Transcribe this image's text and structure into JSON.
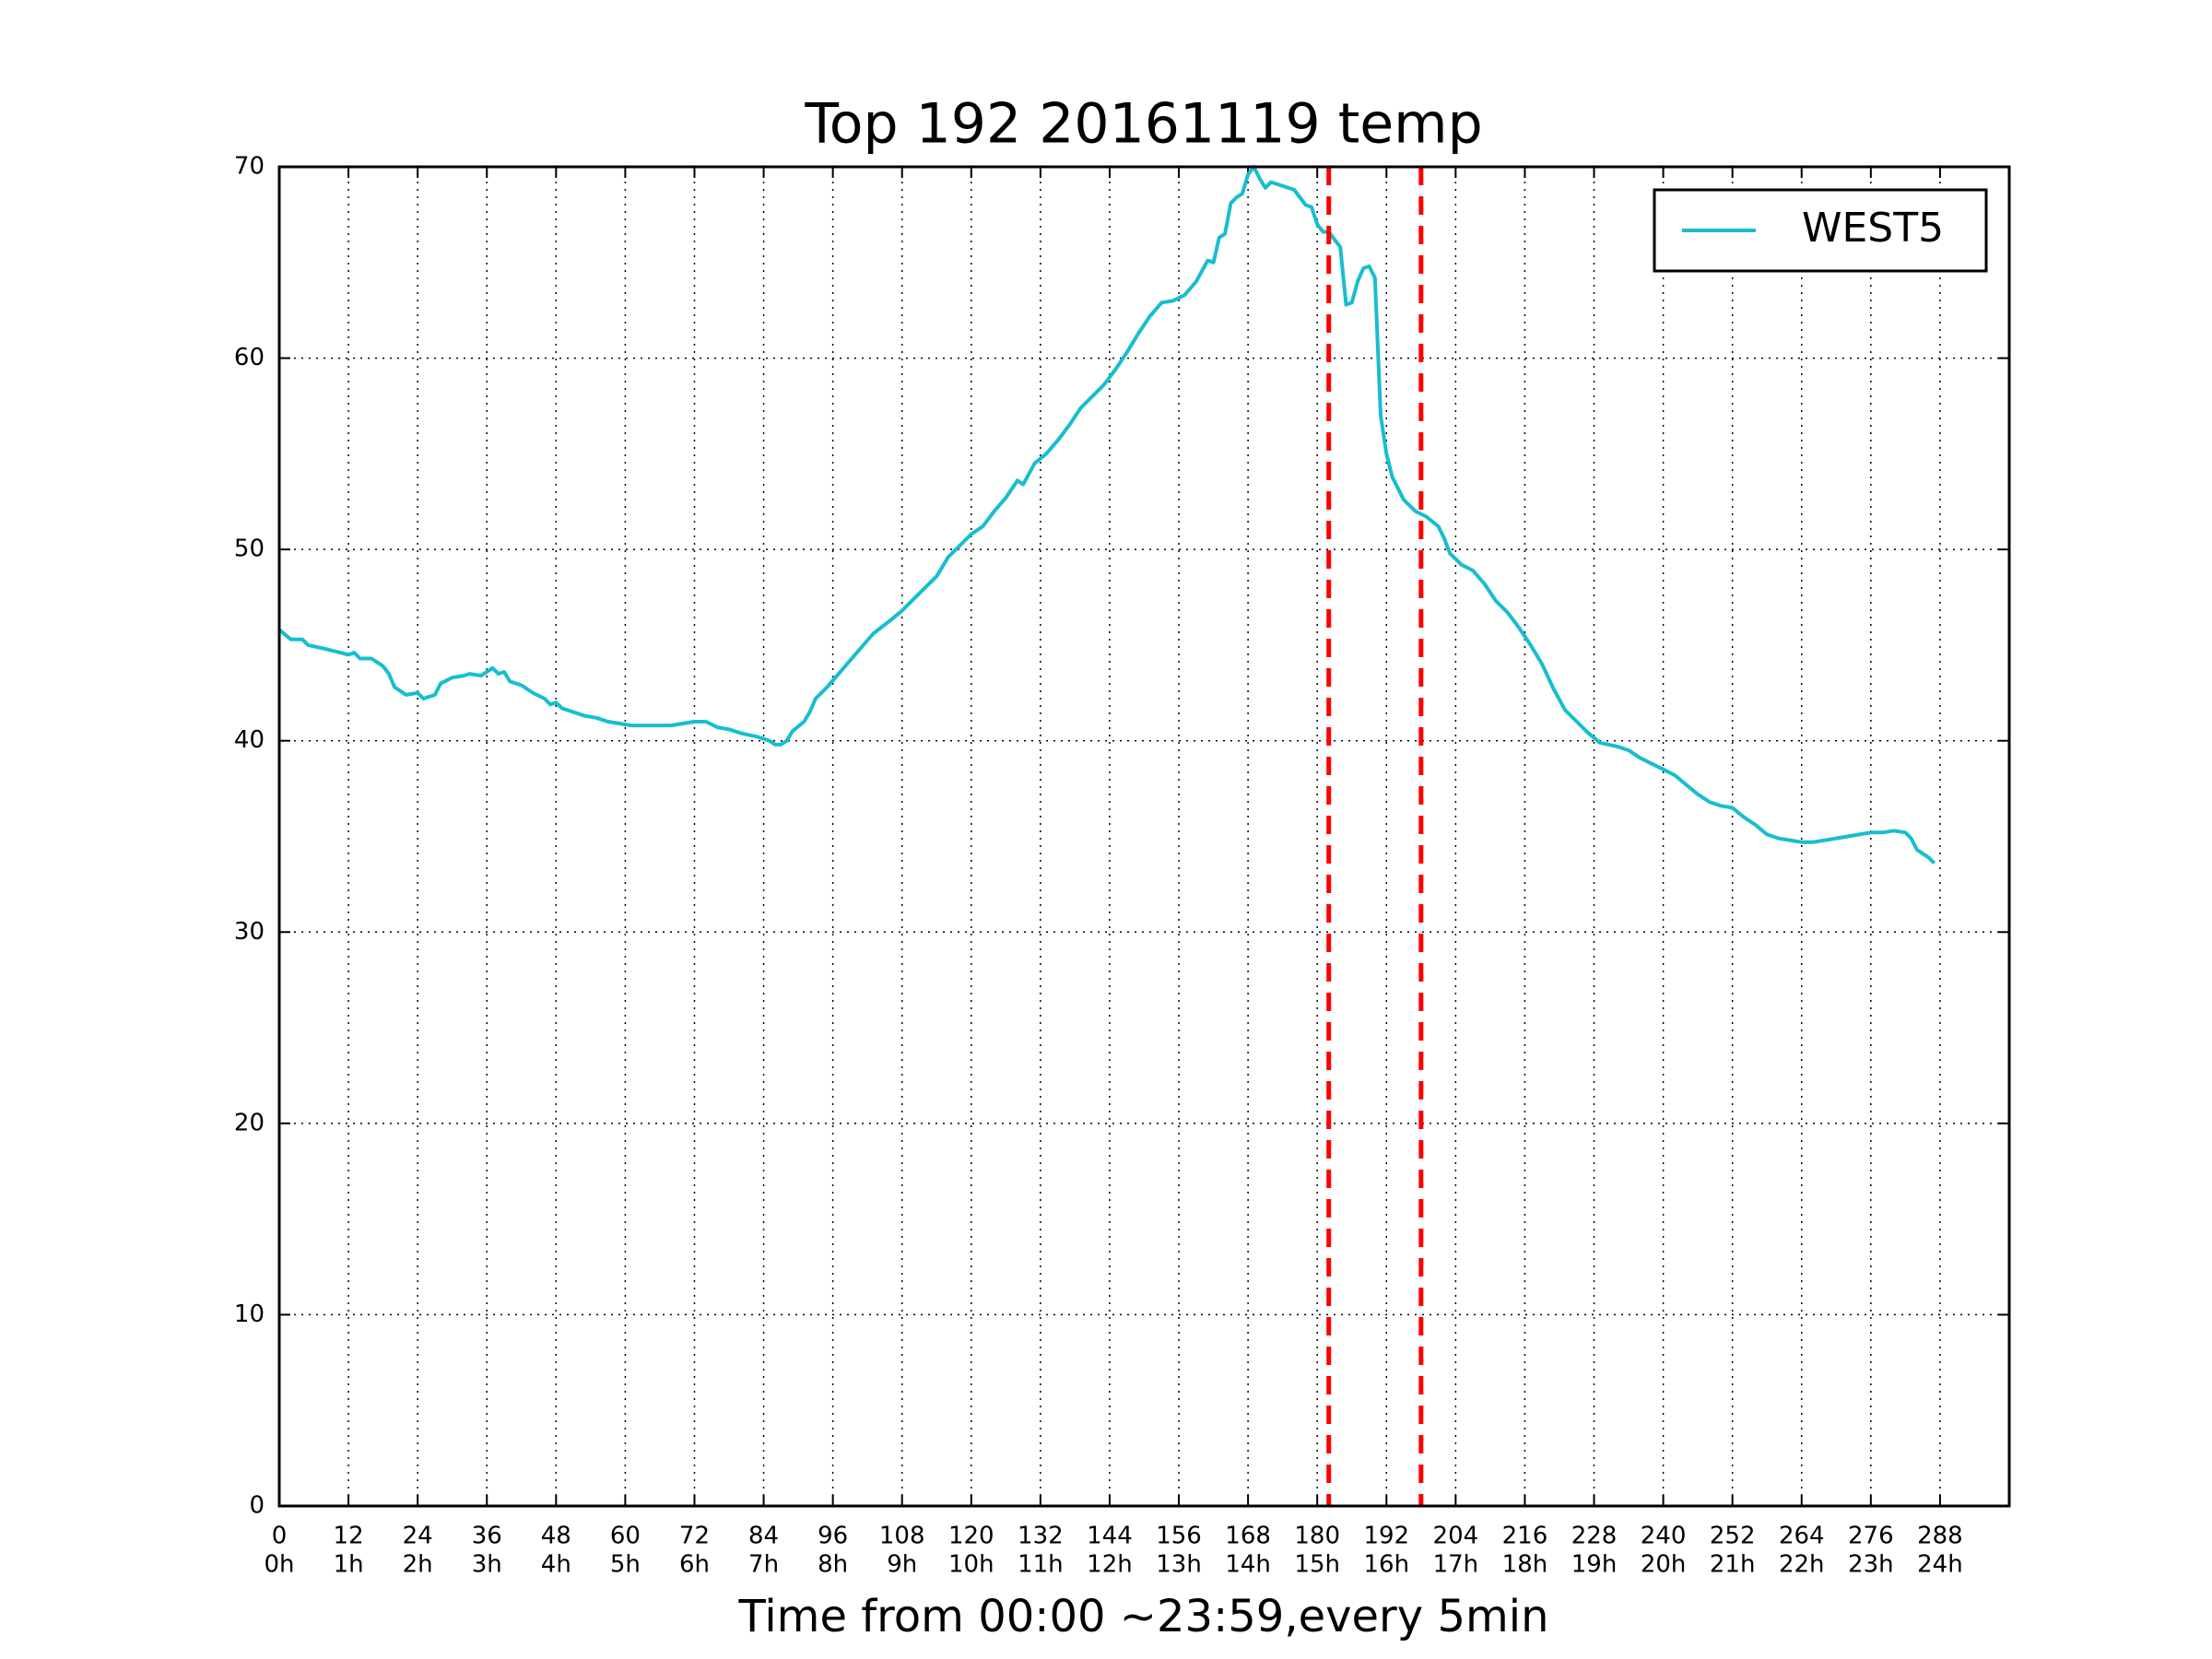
{
  "chart_data": {
    "type": "line",
    "title": "Top 192 20161119 temp",
    "x_label": "Time from 00:00 ~23:59,every 5min",
    "xlim": [
      0,
      300
    ],
    "ylim": [
      0,
      70
    ],
    "xticks": [
      0,
      12,
      24,
      36,
      48,
      60,
      72,
      84,
      96,
      108,
      120,
      132,
      144,
      156,
      168,
      180,
      192,
      204,
      216,
      228,
      240,
      252,
      264,
      276,
      288
    ],
    "xtick_hours": [
      "0h",
      "1h",
      "2h",
      "3h",
      "4h",
      "5h",
      "6h",
      "7h",
      "8h",
      "9h",
      "10h",
      "11h",
      "12h",
      "13h",
      "14h",
      "15h",
      "16h",
      "17h",
      "18h",
      "19h",
      "20h",
      "21h",
      "22h",
      "23h",
      "24h"
    ],
    "yticks": [
      0,
      10,
      20,
      30,
      40,
      50,
      60,
      70
    ],
    "grid": true,
    "legend": "upper right",
    "vlines": [
      {
        "x": 182,
        "color": "#ff0000"
      },
      {
        "x": 198,
        "color": "#ff0000"
      }
    ],
    "series": [
      {
        "name": "WEST5",
        "color": "#17becf",
        "x": [
          0,
          2,
          4,
          5,
          8,
          12,
          13,
          14,
          16,
          18,
          19,
          20,
          22,
          24,
          25,
          27,
          28,
          30,
          32,
          33,
          35,
          36,
          37,
          38,
          39,
          40,
          42,
          44,
          46,
          47,
          48,
          49,
          51,
          53,
          55,
          57,
          59,
          61,
          63,
          65,
          68,
          70,
          72,
          74,
          76,
          78,
          80,
          83,
          85,
          86,
          87,
          88,
          89,
          91,
          92,
          93,
          95,
          97,
          99,
          101,
          103,
          106,
          108,
          110,
          112,
          114,
          116,
          118,
          120,
          122,
          124,
          126,
          128,
          129,
          131,
          133,
          135,
          137,
          139,
          141,
          143,
          145,
          147,
          149,
          151,
          153,
          155,
          157,
          159,
          161,
          162,
          163,
          164,
          165,
          166,
          167,
          168,
          169,
          170,
          171,
          172,
          174,
          176,
          178,
          179,
          180,
          181,
          182,
          184,
          185,
          186,
          187,
          188,
          189,
          190,
          191,
          192,
          193,
          195,
          197,
          199,
          201,
          202,
          203,
          205,
          207,
          209,
          211,
          213,
          215,
          217,
          219,
          221,
          223,
          225,
          227,
          229,
          232,
          234,
          236,
          238,
          240,
          242,
          244,
          246,
          248,
          250,
          252,
          254,
          256,
          258,
          260,
          262,
          264,
          266,
          268,
          270,
          272,
          274,
          276,
          278,
          280,
          282,
          283,
          284,
          286,
          287
        ],
        "values": [
          45.8,
          45.3,
          45.3,
          45.0,
          44.8,
          44.5,
          44.6,
          44.3,
          44.3,
          43.9,
          43.5,
          42.8,
          42.4,
          42.5,
          42.2,
          42.4,
          43.0,
          43.3,
          43.4,
          43.5,
          43.4,
          43.6,
          43.8,
          43.5,
          43.6,
          43.1,
          42.9,
          42.5,
          42.2,
          41.9,
          42.0,
          41.7,
          41.5,
          41.3,
          41.2,
          41.0,
          40.9,
          40.8,
          40.8,
          40.8,
          40.8,
          40.9,
          41.0,
          41.0,
          40.7,
          40.6,
          40.4,
          40.2,
          40.0,
          39.8,
          39.8,
          40.0,
          40.5,
          41.0,
          41.5,
          42.2,
          42.8,
          43.5,
          44.2,
          44.9,
          45.6,
          46.3,
          46.8,
          47.4,
          48.0,
          48.6,
          49.6,
          50.2,
          50.8,
          51.2,
          52.0,
          52.7,
          53.6,
          53.4,
          54.5,
          55.0,
          55.7,
          56.5,
          57.4,
          58.0,
          58.6,
          59.4,
          60.3,
          61.3,
          62.2,
          62.9,
          63.0,
          63.3,
          64.0,
          65.1,
          65.0,
          66.3,
          66.5,
          68.1,
          68.4,
          68.6,
          69.6,
          70.0,
          69.4,
          68.9,
          69.2,
          69.0,
          68.8,
          68.0,
          67.9,
          67.0,
          66.6,
          66.6,
          65.8,
          62.8,
          62.9,
          64.0,
          64.7,
          64.8,
          64.2,
          57.0,
          55.0,
          53.8,
          52.6,
          52.0,
          51.7,
          51.2,
          50.6,
          49.8,
          49.2,
          48.9,
          48.2,
          47.3,
          46.7,
          45.9,
          45.0,
          44.0,
          42.7,
          41.6,
          41.0,
          40.4,
          39.9,
          39.7,
          39.5,
          39.1,
          38.8,
          38.5,
          38.2,
          37.7,
          37.2,
          36.8,
          36.6,
          36.5,
          36.0,
          35.6,
          35.1,
          34.9,
          34.8,
          34.7,
          34.7,
          34.8,
          34.9,
          35.0,
          35.1,
          35.2,
          35.2,
          35.3,
          35.2,
          34.9,
          34.3,
          33.9,
          33.6
        ]
      }
    ]
  }
}
